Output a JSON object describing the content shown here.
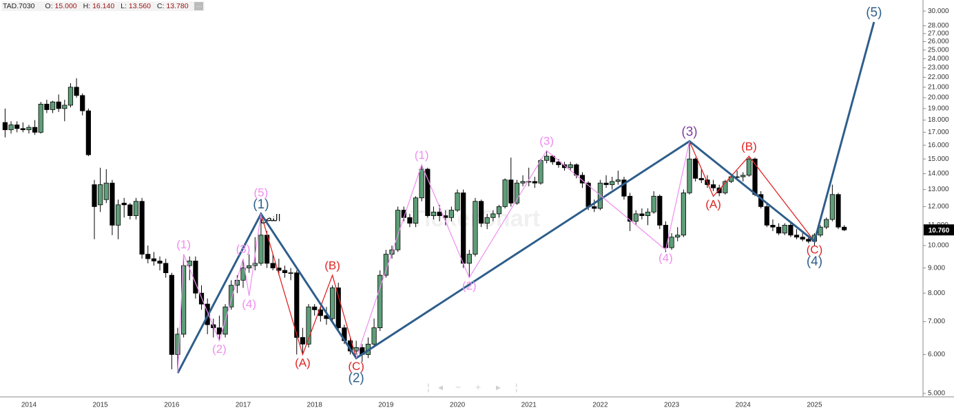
{
  "chart_data": {
    "type": "candlestick",
    "title": "TAD.7030",
    "ohlc_header": [
      {
        "label": "O:",
        "value": "15.000"
      },
      {
        "label": "H:",
        "value": "16.140"
      },
      {
        "label": "L:",
        "value": "13.560"
      },
      {
        "label": "C:",
        "value": "13.780"
      }
    ],
    "more_button": "···",
    "watermark": "TickerChart",
    "annotation": "النص",
    "log_scale": true,
    "up_color": "#5e9e78",
    "down_color": "#000000",
    "ylim": [
      4.92,
      31.6
    ],
    "yticks": [
      {
        "value": 5,
        "label": "5.000"
      },
      {
        "value": 6,
        "label": "6.000"
      },
      {
        "value": 7,
        "label": "7.000"
      },
      {
        "value": 8,
        "label": "8.000"
      },
      {
        "value": 9,
        "label": "9.000"
      },
      {
        "value": 10,
        "label": "10.000"
      },
      {
        "value": 11,
        "label": "11.000"
      },
      {
        "value": 12,
        "label": "12.000"
      },
      {
        "value": 13,
        "label": "13.000"
      },
      {
        "value": 14,
        "label": "14.000"
      },
      {
        "value": 15,
        "label": "15.000"
      },
      {
        "value": 16,
        "label": "16.000"
      },
      {
        "value": 17,
        "label": "17.000"
      },
      {
        "value": 18,
        "label": "18.000"
      },
      {
        "value": 19,
        "label": "19.000"
      },
      {
        "value": 20,
        "label": "20.000"
      },
      {
        "value": 21,
        "label": "21.000"
      },
      {
        "value": 22,
        "label": "22.000"
      },
      {
        "value": 23,
        "label": "23.000"
      },
      {
        "value": 24,
        "label": "24.000"
      },
      {
        "value": 25,
        "label": "25.000"
      },
      {
        "value": 26,
        "label": "26.000"
      },
      {
        "value": 27,
        "label": "27.000"
      },
      {
        "value": 28,
        "label": "28.000"
      },
      {
        "value": 30,
        "label": "30.000"
      }
    ],
    "last_price": {
      "value": 10.76,
      "label": "10.760"
    },
    "categories": [
      null,
      null,
      null,
      null,
      "2014",
      null,
      null,
      null,
      null,
      null,
      null,
      null,
      null,
      null,
      null,
      null,
      "2015",
      null,
      null,
      null,
      null,
      null,
      null,
      null,
      null,
      null,
      null,
      null,
      "2016",
      null,
      null,
      null,
      null,
      null,
      null,
      null,
      null,
      null,
      null,
      null,
      "2017",
      null,
      null,
      null,
      null,
      null,
      null,
      null,
      null,
      null,
      null,
      null,
      "2018",
      null,
      null,
      null,
      null,
      null,
      null,
      null,
      null,
      null,
      null,
      null,
      "2019",
      null,
      null,
      null,
      null,
      null,
      null,
      null,
      null,
      null,
      null,
      null,
      "2020",
      null,
      null,
      null,
      null,
      null,
      null,
      null,
      null,
      null,
      null,
      null,
      "2021",
      null,
      null,
      null,
      null,
      null,
      null,
      null,
      null,
      null,
      null,
      null,
      "2022",
      null,
      null,
      null,
      null,
      null,
      null,
      null,
      null,
      null,
      null,
      null,
      "2023",
      null,
      null,
      null,
      null,
      null,
      null,
      null,
      null,
      null,
      null,
      null,
      "2024",
      null,
      null,
      null,
      null,
      null,
      null,
      null,
      null,
      null,
      null,
      null,
      "2025",
      null,
      null,
      null,
      null,
      null
    ],
    "ohlc": [
      [
        17.8,
        19.0,
        16.6,
        17.2
      ],
      [
        17.2,
        17.9,
        16.9,
        17.6
      ],
      [
        17.6,
        17.9,
        17.0,
        17.3
      ],
      [
        17.3,
        17.8,
        17.0,
        17.2
      ],
      [
        17.2,
        17.6,
        16.9,
        17.4
      ],
      [
        17.4,
        18.0,
        16.8,
        17.0
      ],
      [
        17.0,
        19.6,
        16.9,
        19.4
      ],
      [
        19.4,
        19.8,
        18.6,
        18.9
      ],
      [
        18.9,
        19.7,
        18.6,
        19.6
      ],
      [
        19.6,
        20.3,
        18.7,
        19.0
      ],
      [
        19.0,
        19.8,
        17.9,
        19.3
      ],
      [
        19.3,
        21.4,
        19.1,
        21.0
      ],
      [
        21.0,
        21.9,
        20.0,
        20.2
      ],
      [
        20.2,
        20.4,
        18.4,
        18.8
      ],
      [
        18.8,
        19.0,
        15.2,
        15.3
      ],
      [
        13.3,
        13.6,
        10.3,
        12.0
      ],
      [
        12.1,
        14.4,
        11.7,
        13.3
      ],
      [
        12.4,
        14.3,
        12.2,
        13.4
      ],
      [
        13.4,
        13.6,
        10.5,
        11.0
      ],
      [
        11.0,
        12.4,
        10.3,
        12.1
      ],
      [
        12.2,
        12.5,
        11.4,
        12.1
      ],
      [
        12.1,
        12.2,
        11.3,
        11.5
      ],
      [
        11.5,
        12.5,
        11.3,
        12.3
      ],
      [
        12.3,
        12.5,
        9.4,
        9.6
      ],
      [
        9.6,
        10.0,
        9.2,
        9.4
      ],
      [
        9.4,
        9.7,
        9.1,
        9.3
      ],
      [
        9.3,
        9.5,
        8.9,
        9.2
      ],
      [
        9.2,
        9.4,
        8.6,
        8.8
      ],
      [
        8.7,
        8.8,
        5.6,
        6.0
      ],
      [
        6.0,
        6.8,
        5.5,
        6.6
      ],
      [
        6.6,
        9.6,
        6.5,
        9.1
      ],
      [
        9.1,
        9.5,
        8.5,
        9.3
      ],
      [
        9.3,
        9.5,
        7.8,
        8.0
      ],
      [
        8.0,
        8.3,
        7.4,
        7.6
      ],
      [
        7.6,
        7.8,
        6.6,
        6.9
      ],
      [
        6.9,
        7.1,
        6.5,
        6.8
      ],
      [
        6.8,
        7.2,
        6.4,
        6.6
      ],
      [
        6.6,
        7.6,
        6.5,
        7.5
      ],
      [
        7.5,
        8.5,
        7.4,
        8.3
      ],
      [
        8.3,
        8.7,
        8.0,
        8.5
      ],
      [
        8.5,
        9.4,
        8.2,
        9.0
      ],
      [
        9.0,
        9.6,
        8.8,
        9.1
      ],
      [
        9.1,
        10.4,
        8.9,
        9.2
      ],
      [
        9.2,
        11.4,
        9.1,
        10.5
      ],
      [
        10.5,
        10.7,
        9.0,
        9.2
      ],
      [
        9.2,
        9.6,
        8.9,
        9.0
      ],
      [
        9.0,
        9.4,
        8.7,
        8.9
      ],
      [
        8.9,
        9.1,
        8.6,
        8.8
      ],
      [
        8.8,
        9.0,
        8.5,
        8.8
      ],
      [
        8.8,
        8.9,
        6.0,
        6.5
      ],
      [
        6.5,
        6.8,
        6.0,
        6.3
      ],
      [
        6.3,
        7.6,
        6.2,
        7.5
      ],
      [
        7.5,
        7.6,
        7.2,
        7.4
      ],
      [
        7.4,
        7.5,
        7.0,
        7.2
      ],
      [
        7.2,
        7.5,
        6.9,
        7.1
      ],
      [
        7.1,
        8.3,
        7.0,
        8.2
      ],
      [
        8.2,
        8.4,
        6.7,
        6.8
      ],
      [
        6.8,
        6.9,
        6.3,
        6.4
      ],
      [
        6.4,
        6.5,
        6.0,
        6.1
      ],
      [
        6.1,
        6.4,
        6.0,
        6.2
      ],
      [
        6.2,
        6.3,
        5.8,
        6.0
      ],
      [
        6.0,
        6.5,
        5.9,
        6.3
      ],
      [
        6.3,
        7.1,
        6.2,
        6.8
      ],
      [
        6.8,
        8.9,
        6.7,
        8.7
      ],
      [
        8.7,
        9.8,
        8.6,
        9.6
      ],
      [
        9.6,
        10.0,
        9.4,
        9.8
      ],
      [
        9.8,
        12.0,
        9.7,
        11.8
      ],
      [
        11.8,
        12.0,
        11.2,
        11.4
      ],
      [
        11.4,
        11.6,
        10.9,
        11.1
      ],
      [
        11.1,
        12.6,
        10.9,
        12.5
      ],
      [
        12.5,
        14.6,
        12.3,
        14.3
      ],
      [
        14.3,
        14.4,
        11.4,
        11.5
      ],
      [
        11.5,
        12.0,
        11.3,
        11.7
      ],
      [
        11.7,
        12.1,
        11.2,
        11.5
      ],
      [
        11.5,
        11.8,
        11.0,
        11.4
      ],
      [
        11.4,
        12.0,
        11.2,
        11.8
      ],
      [
        11.8,
        13.0,
        11.7,
        12.8
      ],
      [
        12.8,
        13.0,
        9.0,
        9.2
      ],
      [
        9.2,
        9.8,
        8.6,
        9.6
      ],
      [
        9.6,
        12.5,
        9.5,
        12.3
      ],
      [
        12.3,
        12.4,
        10.9,
        11.1
      ],
      [
        11.1,
        11.6,
        10.8,
        11.4
      ],
      [
        11.4,
        11.8,
        11.2,
        11.6
      ],
      [
        11.6,
        12.1,
        11.4,
        12.0
      ],
      [
        12.0,
        13.7,
        11.9,
        13.6
      ],
      [
        13.6,
        15.1,
        12.0,
        12.2
      ],
      [
        12.2,
        13.6,
        12.1,
        13.4
      ],
      [
        13.4,
        13.9,
        13.2,
        13.5
      ],
      [
        13.5,
        14.4,
        13.2,
        13.5
      ],
      [
        13.5,
        13.8,
        13.1,
        13.4
      ],
      [
        13.4,
        15.0,
        13.3,
        14.9
      ],
      [
        14.9,
        15.6,
        14.7,
        15.2
      ],
      [
        15.2,
        15.3,
        14.6,
        14.8
      ],
      [
        14.8,
        15.0,
        14.4,
        14.6
      ],
      [
        14.6,
        14.8,
        14.2,
        14.4
      ],
      [
        14.4,
        14.8,
        14.2,
        14.6
      ],
      [
        14.6,
        14.7,
        13.7,
        13.9
      ],
      [
        13.9,
        14.1,
        13.1,
        13.4
      ],
      [
        13.4,
        13.5,
        11.8,
        12.0
      ],
      [
        12.0,
        12.4,
        11.7,
        11.9
      ],
      [
        11.9,
        13.6,
        11.8,
        13.4
      ],
      [
        13.4,
        13.9,
        13.1,
        13.3
      ],
      [
        13.3,
        13.8,
        13.0,
        13.5
      ],
      [
        13.5,
        14.2,
        13.3,
        13.6
      ],
      [
        13.6,
        13.8,
        12.4,
        12.6
      ],
      [
        12.6,
        12.8,
        10.7,
        11.2
      ],
      [
        11.2,
        11.8,
        11.0,
        11.6
      ],
      [
        11.6,
        11.9,
        11.3,
        11.5
      ],
      [
        11.5,
        11.9,
        11.0,
        11.7
      ],
      [
        11.7,
        12.9,
        11.6,
        12.6
      ],
      [
        12.6,
        12.7,
        10.8,
        11.0
      ],
      [
        11.0,
        11.2,
        9.7,
        9.9
      ],
      [
        9.9,
        10.6,
        9.8,
        10.4
      ],
      [
        10.4,
        10.9,
        10.2,
        10.5
      ],
      [
        10.5,
        13.0,
        10.4,
        12.8
      ],
      [
        12.8,
        16.3,
        12.7,
        15.0
      ],
      [
        15.0,
        15.1,
        13.5,
        13.7
      ],
      [
        13.7,
        14.3,
        13.4,
        13.6
      ],
      [
        13.6,
        13.9,
        13.1,
        13.3
      ],
      [
        13.3,
        13.6,
        12.9,
        13.1
      ],
      [
        13.1,
        13.3,
        12.6,
        12.8
      ],
      [
        12.8,
        13.6,
        12.7,
        13.5
      ],
      [
        13.5,
        14.0,
        13.4,
        13.8
      ],
      [
        13.8,
        14.2,
        13.6,
        13.8
      ],
      [
        13.8,
        14.1,
        13.5,
        13.9
      ],
      [
        13.9,
        15.1,
        13.8,
        15.0
      ],
      [
        15.0,
        15.1,
        12.6,
        12.7
      ],
      [
        12.7,
        12.9,
        11.9,
        12.0
      ],
      [
        12.0,
        12.2,
        10.9,
        11.0
      ],
      [
        11.0,
        11.3,
        10.7,
        10.9
      ],
      [
        10.9,
        11.1,
        10.5,
        10.6
      ],
      [
        10.6,
        11.1,
        10.5,
        11.0
      ],
      [
        11.0,
        11.2,
        10.4,
        10.5
      ],
      [
        10.5,
        10.8,
        10.3,
        10.4
      ],
      [
        10.4,
        10.6,
        10.2,
        10.3
      ],
      [
        10.3,
        10.5,
        10.1,
        10.2
      ],
      [
        10.2,
        10.6,
        10.0,
        10.5
      ],
      [
        10.5,
        11.0,
        10.4,
        10.9
      ],
      [
        10.9,
        11.4,
        10.8,
        11.3
      ],
      [
        11.3,
        13.3,
        11.2,
        12.7
      ],
      [
        12.7,
        12.8,
        10.8,
        10.9
      ],
      [
        10.9,
        11.0,
        10.7,
        10.76
      ]
    ],
    "waves": [
      {
        "color": "#e02424",
        "line_width": 1.3,
        "points": [
          {
            "x": 43,
            "y": 11.6
          },
          {
            "x": 50,
            "y": 6.0,
            "label": "(A)"
          },
          {
            "x": 55,
            "y": 8.7,
            "label": "(B)"
          },
          {
            "x": 59,
            "y": 5.9,
            "label": "(C)"
          }
        ]
      },
      {
        "color": "#e02424",
        "line_width": 1.3,
        "points": [
          {
            "x": 115,
            "y": 16.3
          },
          {
            "x": 119,
            "y": 12.6,
            "label": "(A)"
          },
          {
            "x": 125,
            "y": 15.2,
            "label": "(B)"
          },
          {
            "x": 136,
            "y": 10.2,
            "label": "(C)"
          }
        ]
      },
      {
        "color": "#2e5e8b",
        "line_width": 3,
        "points": [
          {
            "x": 29,
            "y": 5.5
          },
          {
            "x": 43,
            "y": 11.6,
            "label": "(1)"
          },
          {
            "x": 59,
            "y": 5.9,
            "label": "(2)"
          },
          {
            "x": 115,
            "y": 16.3,
            "label": "(3)",
            "label_color": "#7b3fa0"
          },
          {
            "x": 136,
            "y": 10.2,
            "label": "(4)"
          },
          {
            "x": 146,
            "y": 28.5,
            "label": "(5)"
          }
        ]
      },
      {
        "color": "#f08cf0",
        "line_width": 1.2,
        "points": [
          {
            "x": 29,
            "y": 5.5
          },
          {
            "x": 30,
            "y": 9.6,
            "label": "(1)"
          },
          {
            "x": 36,
            "y": 6.4,
            "label": "(2)"
          },
          {
            "x": 40,
            "y": 9.4,
            "label": "(3)"
          },
          {
            "x": 41,
            "y": 7.9,
            "label": "(4)"
          },
          {
            "x": 43,
            "y": 11.6,
            "label": "(5)"
          }
        ]
      },
      {
        "color": "#f08cf0",
        "line_width": 1.2,
        "points": [
          {
            "x": 59,
            "y": 5.9
          },
          {
            "x": 70,
            "y": 14.6,
            "label": "(1)"
          },
          {
            "x": 78,
            "y": 8.6,
            "label": "(2)"
          },
          {
            "x": 91,
            "y": 15.6,
            "label": "(3)"
          },
          {
            "x": 111,
            "y": 9.8,
            "label": "(4)"
          },
          {
            "x": 115,
            "y": 16.3
          }
        ]
      }
    ]
  }
}
